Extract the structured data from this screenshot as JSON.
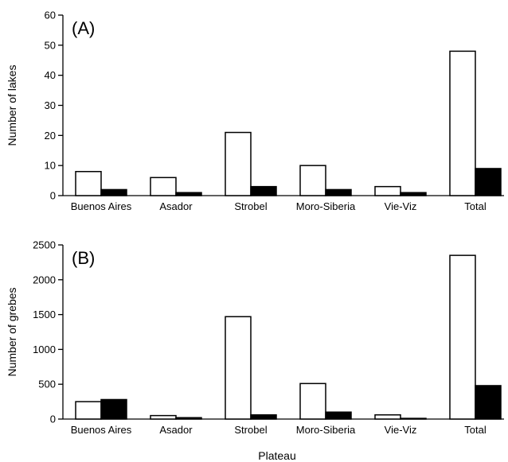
{
  "chart_data": [
    {
      "type": "bar",
      "panel_label": "(A)",
      "ylabel": "Number of lakes",
      "xlabel": "",
      "categories": [
        "Buenos Aires",
        "Asador",
        "Strobel",
        "Moro-Siberia",
        "Vie-Viz",
        "Total"
      ],
      "series": [
        {
          "fill": "#ffffff",
          "values": [
            8,
            6,
            21,
            10,
            3,
            48
          ]
        },
        {
          "fill": "#000000",
          "values": [
            2,
            1,
            3,
            2,
            1,
            9
          ]
        }
      ],
      "ylim": [
        0,
        60
      ],
      "yticks": [
        0,
        10,
        20,
        30,
        40,
        50,
        60
      ],
      "grid": false
    },
    {
      "type": "bar",
      "panel_label": "(B)",
      "ylabel": "Number of grebes",
      "xlabel": "Plateau",
      "categories": [
        "Buenos Aires",
        "Asador",
        "Strobel",
        "Moro-Siberia",
        "Vie-Viz",
        "Total"
      ],
      "series": [
        {
          "fill": "#ffffff",
          "values": [
            250,
            50,
            1470,
            510,
            60,
            2350
          ]
        },
        {
          "fill": "#000000",
          "values": [
            280,
            20,
            60,
            100,
            10,
            480
          ]
        }
      ],
      "ylim": [
        0,
        2500
      ],
      "yticks": [
        0,
        500,
        1000,
        1500,
        2000,
        2500
      ],
      "grid": false
    }
  ]
}
